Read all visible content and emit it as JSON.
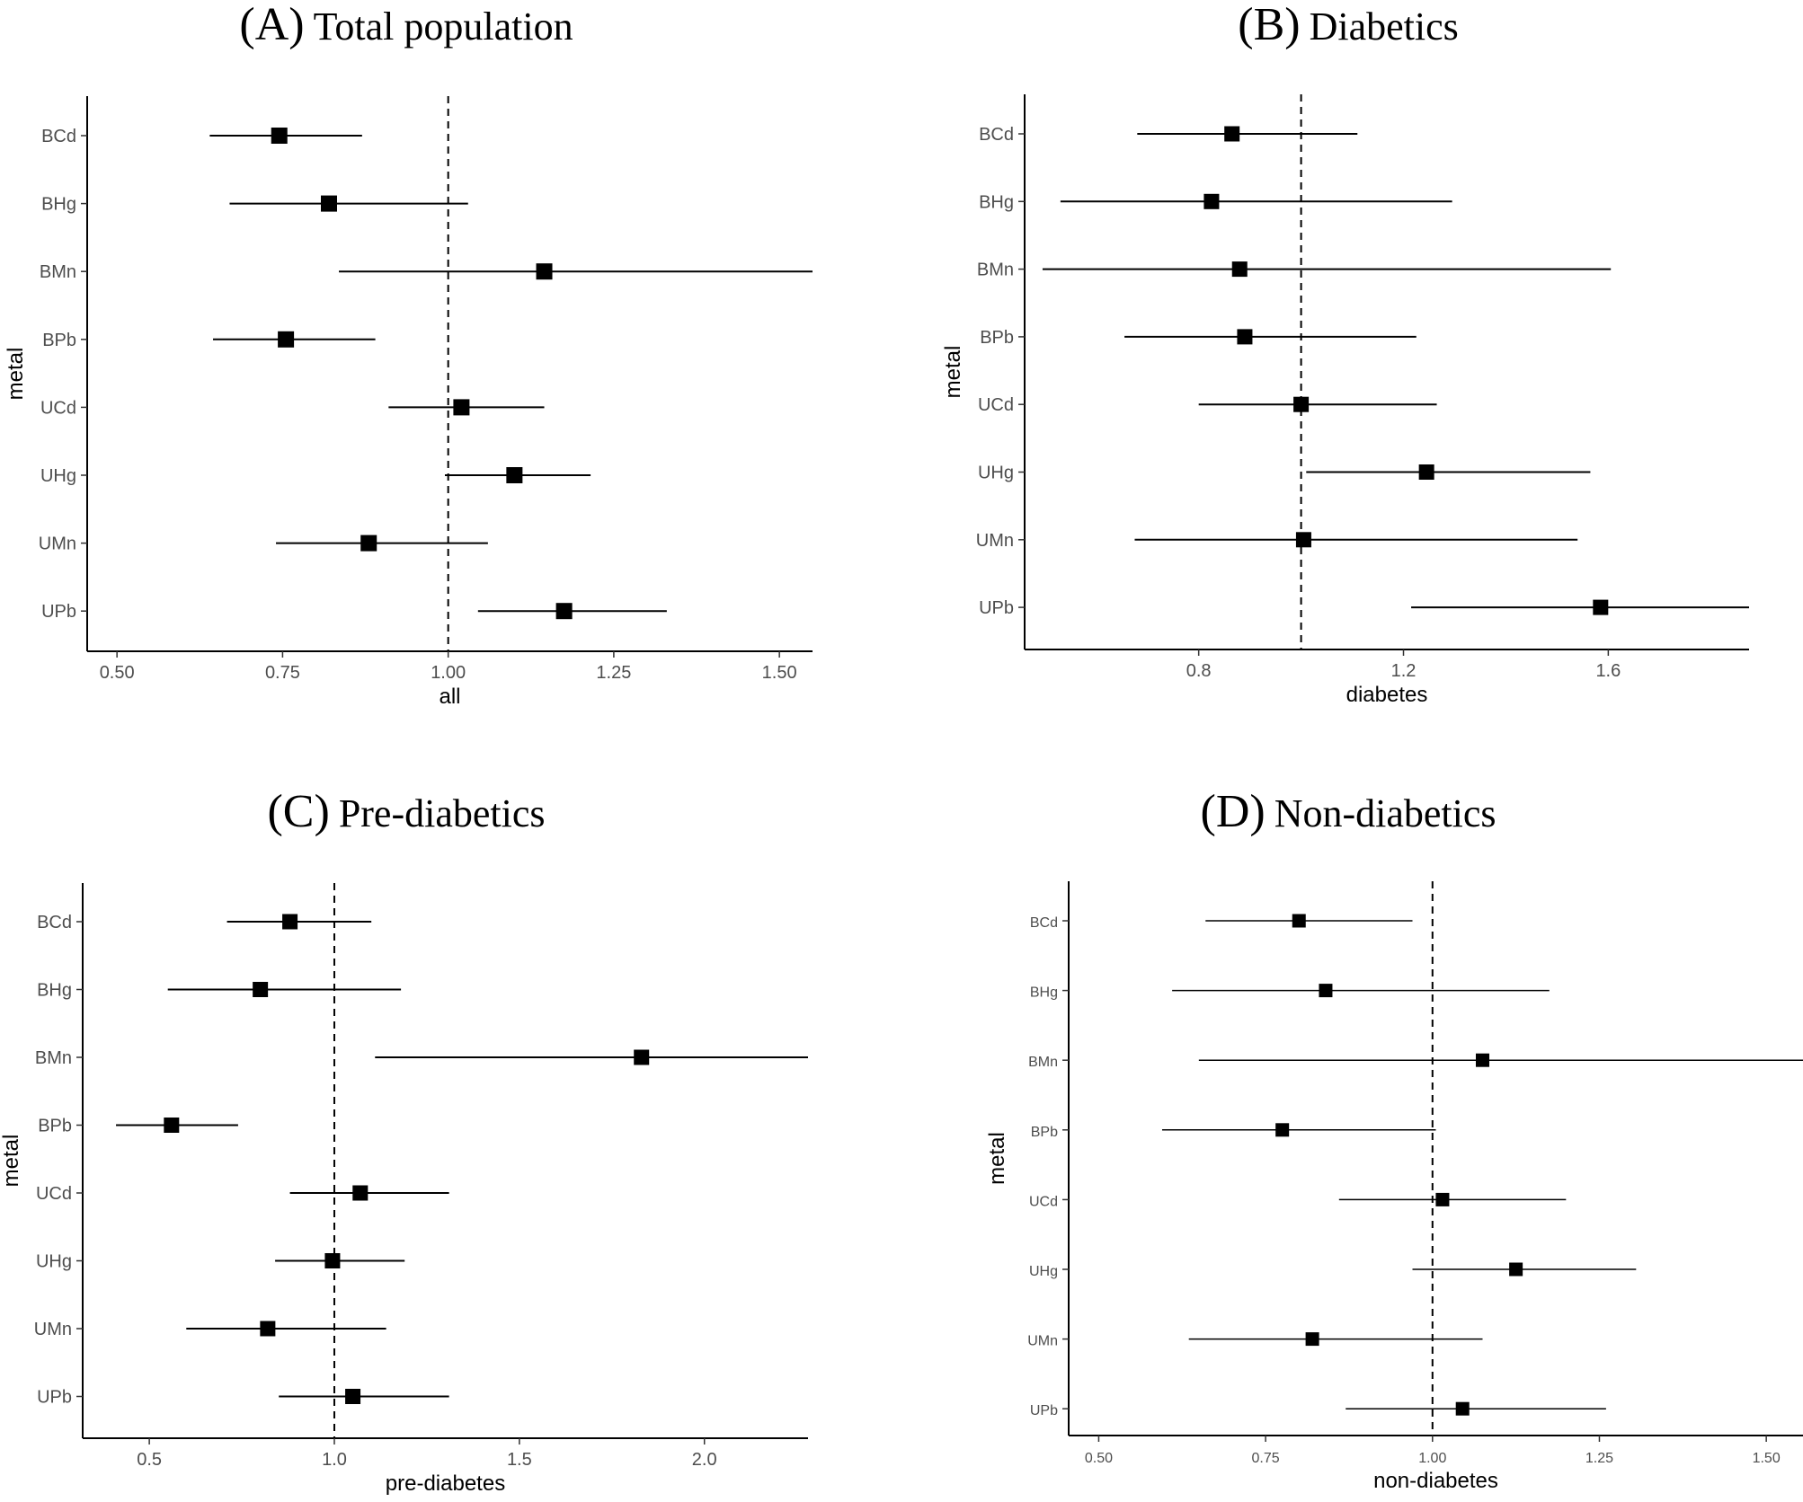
{
  "chart_data": [
    {
      "type": "forest",
      "panel_label": "(A)",
      "title": "Total population",
      "xlabel": "all",
      "ylabel": "metal",
      "categories": [
        "BCd",
        "BHg",
        "BMn",
        "BPb",
        "UCd",
        "UHg",
        "UMn",
        "UPb"
      ],
      "estimates": [
        0.745,
        0.82,
        1.145,
        0.755,
        1.02,
        1.1,
        0.88,
        1.175
      ],
      "lower": [
        0.64,
        0.67,
        0.835,
        0.645,
        0.91,
        0.995,
        0.74,
        1.045
      ],
      "upper": [
        0.87,
        1.03,
        1.55,
        0.89,
        1.145,
        1.215,
        1.06,
        1.33
      ],
      "reference": 1.0,
      "xlim": [
        0.455,
        1.55
      ],
      "xticks": [
        0.5,
        0.75,
        1.0,
        1.25,
        1.5
      ],
      "xtick_labels": [
        "0.50",
        "0.75",
        "1.00",
        "1.25",
        "1.50"
      ]
    },
    {
      "type": "forest",
      "panel_label": "(B)",
      "title": "Diabetics",
      "xlabel": "diabetes",
      "ylabel": "metal",
      "categories": [
        "BCd",
        "BHg",
        "BMn",
        "BPb",
        "UCd",
        "UHg",
        "UMn",
        "UPb"
      ],
      "estimates": [
        0.865,
        0.825,
        0.88,
        0.89,
        1.0,
        1.245,
        1.005,
        1.585
      ],
      "lower": [
        0.68,
        0.53,
        0.495,
        0.655,
        0.8,
        1.01,
        0.675,
        1.215
      ],
      "upper": [
        1.11,
        1.295,
        1.605,
        1.225,
        1.265,
        1.565,
        1.54,
        1.875
      ],
      "reference": 1.0,
      "xlim": [
        0.46,
        1.875
      ],
      "xticks": [
        0.8,
        1.2,
        1.6
      ],
      "xtick_labels": [
        "0.8",
        "1.2",
        "1.6"
      ]
    },
    {
      "type": "forest",
      "panel_label": "(C)",
      "title": "Pre-diabetics",
      "xlabel": "pre-diabetes",
      "ylabel": "metal",
      "categories": [
        "BCd",
        "BHg",
        "BMn",
        "BPb",
        "UCd",
        "UHg",
        "UMn",
        "UPb"
      ],
      "estimates": [
        0.88,
        0.8,
        1.83,
        0.56,
        1.07,
        0.995,
        0.82,
        1.05
      ],
      "lower": [
        0.71,
        0.55,
        1.11,
        0.41,
        0.88,
        0.84,
        0.6,
        0.85
      ],
      "upper": [
        1.1,
        1.18,
        2.28,
        0.74,
        1.31,
        1.19,
        1.14,
        1.31
      ],
      "reference": 1.0,
      "xlim": [
        0.32,
        2.28
      ],
      "xticks": [
        0.5,
        1.0,
        1.5,
        2.0
      ],
      "xtick_labels": [
        "0.5",
        "1.0",
        "1.5",
        "2.0"
      ]
    },
    {
      "type": "forest",
      "panel_label": "(D)",
      "title": "Non-diabetics",
      "xlabel": "non-diabetes",
      "ylabel": "metal",
      "categories": [
        "BCd",
        "BHg",
        "BMn",
        "BPb",
        "UCd",
        "UHg",
        "UMn",
        "UPb"
      ],
      "estimates": [
        0.8,
        0.84,
        1.075,
        0.775,
        1.015,
        1.125,
        0.82,
        1.045
      ],
      "lower": [
        0.66,
        0.61,
        0.65,
        0.595,
        0.86,
        0.97,
        0.635,
        0.87
      ],
      "upper": [
        0.97,
        1.175,
        1.555,
        1.005,
        1.2,
        1.305,
        1.075,
        1.26
      ],
      "reference": 1.0,
      "xlim": [
        0.455,
        1.555
      ],
      "xticks": [
        0.5,
        0.75,
        1.0,
        1.25,
        1.5
      ],
      "xtick_labels": [
        "0.50",
        "0.75",
        "1.00",
        "1.25",
        "1.50"
      ]
    }
  ]
}
